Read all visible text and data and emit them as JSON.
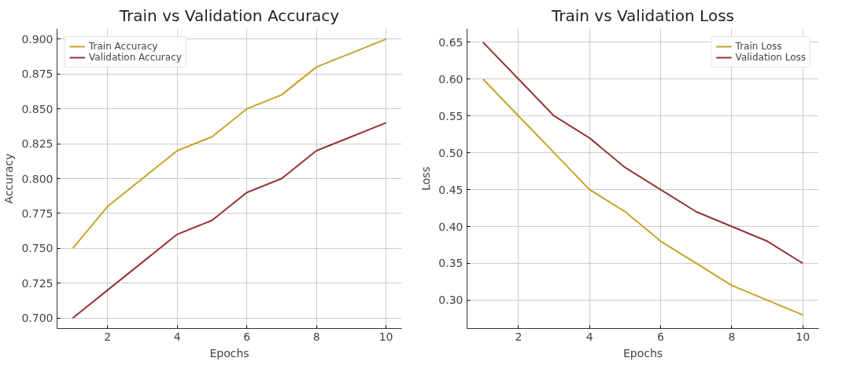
{
  "chart_data": [
    {
      "type": "line",
      "title": "Train vs Validation Accuracy",
      "xlabel": "Epochs",
      "ylabel": "Accuracy",
      "x": [
        1,
        2,
        3,
        4,
        5,
        6,
        7,
        8,
        9,
        10
      ],
      "series": [
        {
          "name": "Train Accuracy",
          "color": "#c9a227",
          "values": [
            0.75,
            0.78,
            0.8,
            0.82,
            0.83,
            0.85,
            0.86,
            0.88,
            0.89,
            0.9
          ]
        },
        {
          "name": "Validation Accuracy",
          "color": "#953535",
          "values": [
            0.7,
            0.72,
            0.74,
            0.76,
            0.77,
            0.79,
            0.8,
            0.82,
            0.83,
            0.84
          ]
        }
      ],
      "xlim": [
        0.55,
        10.45
      ],
      "xticks": [
        2,
        4,
        6,
        8,
        10
      ],
      "ylim": [
        0.6925,
        0.9075
      ],
      "yticks": [
        {
          "value": 0.7,
          "label": "0.700"
        },
        {
          "value": 0.725,
          "label": "0.725"
        },
        {
          "value": 0.75,
          "label": "0.750"
        },
        {
          "value": 0.775,
          "label": "0.775"
        },
        {
          "value": 0.8,
          "label": "0.800"
        },
        {
          "value": 0.825,
          "label": "0.825"
        },
        {
          "value": 0.85,
          "label": "0.850"
        },
        {
          "value": 0.875,
          "label": "0.875"
        },
        {
          "value": 0.9,
          "label": "0.900"
        }
      ],
      "grid": true,
      "legend": "top left",
      "marker": "none",
      "line_style": "solid"
    },
    {
      "type": "line",
      "title": "Train vs Validation Loss",
      "xlabel": "Epochs",
      "ylabel": "Loss",
      "x": [
        1,
        2,
        3,
        4,
        5,
        6,
        7,
        8,
        9,
        10
      ],
      "series": [
        {
          "name": "Train Loss",
          "color": "#c9a227",
          "values": [
            0.6,
            0.55,
            0.5,
            0.45,
            0.42,
            0.38,
            0.35,
            0.32,
            0.3,
            0.28
          ]
        },
        {
          "name": "Validation Loss",
          "color": "#953535",
          "values": [
            0.65,
            0.6,
            0.55,
            0.52,
            0.48,
            0.45,
            0.42,
            0.4,
            0.38,
            0.35
          ]
        }
      ],
      "xlim": [
        0.55,
        10.45
      ],
      "xticks": [
        2,
        4,
        6,
        8,
        10
      ],
      "ylim": [
        0.2615,
        0.6685
      ],
      "yticks": [
        {
          "value": 0.3,
          "label": "0.30"
        },
        {
          "value": 0.35,
          "label": "0.35"
        },
        {
          "value": 0.4,
          "label": "0.40"
        },
        {
          "value": 0.45,
          "label": "0.45"
        },
        {
          "value": 0.5,
          "label": "0.50"
        },
        {
          "value": 0.55,
          "label": "0.55"
        },
        {
          "value": 0.6,
          "label": "0.60"
        },
        {
          "value": 0.65,
          "label": "0.65"
        }
      ],
      "grid": true,
      "legend": "top right",
      "marker": "none",
      "line_style": "solid"
    }
  ]
}
